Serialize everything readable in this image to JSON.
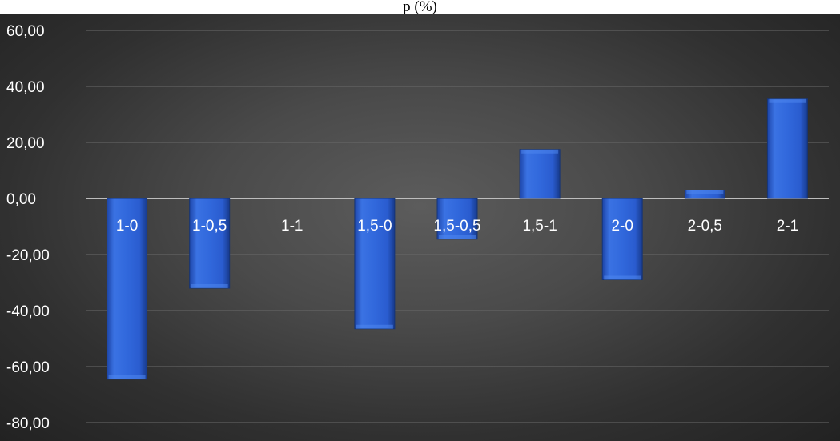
{
  "chart": {
    "title_fragment": "p                    (%)"
  },
  "chart_data": {
    "type": "bar",
    "title": "",
    "xlabel": "",
    "ylabel": "",
    "categories": [
      "1-0",
      "1-0,5",
      "1-1",
      "1,5-0",
      "1,5-0,5",
      "1,5-1",
      "2-0",
      "2-0,5",
      "2-1"
    ],
    "series": [
      {
        "values": [
          -64.5,
          -32.0,
          0.0,
          -46.5,
          -14.5,
          17.5,
          -29.0,
          3.0,
          35.5
        ]
      }
    ],
    "ylim": [
      -80,
      60
    ],
    "yticks": [
      60,
      40,
      20,
      0,
      -20,
      -40,
      -60,
      -80
    ],
    "ytick_labels": [
      "60,00",
      "40,00",
      "20,00",
      "0,00",
      "-20,00",
      "-40,00",
      "-60,00",
      "-80,00"
    ],
    "grid": true,
    "legend": "none",
    "colors": {
      "bar": "#2f63d6",
      "bar_light": "#4f86ee",
      "bar_dark": "#1c3f96",
      "gridline": "#6a6a6a",
      "zero_line": "#bdbdbd",
      "text": "#ffffff"
    }
  }
}
